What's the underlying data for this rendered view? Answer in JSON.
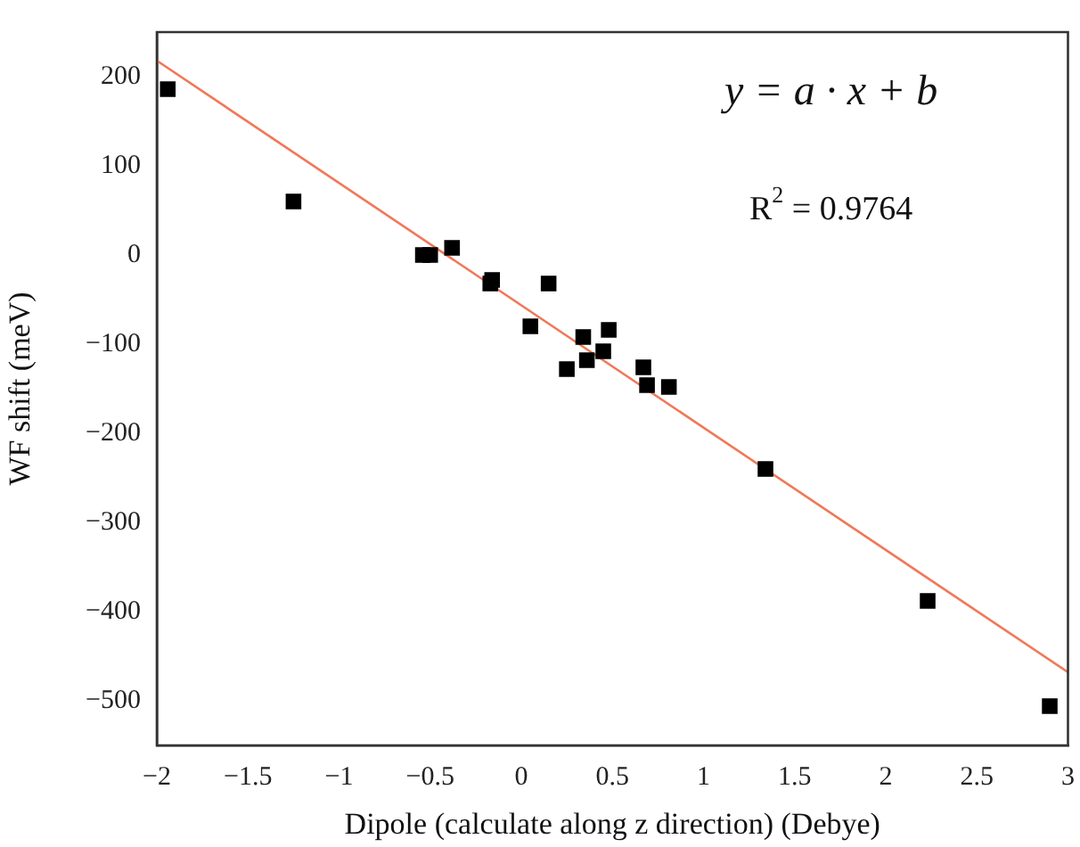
{
  "chart_data": {
    "type": "scatter",
    "xlabel": "Dipole (calculate along z direction) (Debye)",
    "ylabel": "WF shift (meV)",
    "xlim": [
      -2,
      3
    ],
    "xticks": [
      -2,
      -1.5,
      -1,
      -0.5,
      0,
      0.5,
      1,
      1.5,
      2,
      2.5,
      3
    ],
    "ylim": [
      -550,
      250
    ],
    "yticks": [
      -500,
      -400,
      -300,
      -200,
      -100,
      0,
      100,
      200
    ],
    "grid": false,
    "legend": false,
    "marker": "square",
    "annotations": [
      "y = a · x + b",
      "R$^{2}$ = 0.9764"
    ],
    "series": [
      {
        "color": "#000000",
        "x": [
          -1.94,
          -1.25,
          -0.54,
          -0.5,
          -0.38,
          -0.17,
          -0.16,
          0.15,
          0.05,
          0.25,
          0.34,
          0.36,
          0.45,
          0.48,
          0.67,
          0.69,
          0.81,
          1.34,
          2.23,
          2.9
        ],
        "values": [
          186,
          60,
          0,
          0,
          8,
          -32,
          -28,
          -32,
          -80,
          -128,
          -92,
          -118,
          -108,
          -84,
          -126,
          -146,
          -148,
          -240,
          -388,
          -506
        ]
      },
      {
        "type": "line",
        "color": "#f07858",
        "marker": "none",
        "x": [
          -2,
          3
        ],
        "values": [
          218,
          -468
        ]
      }
    ]
  }
}
